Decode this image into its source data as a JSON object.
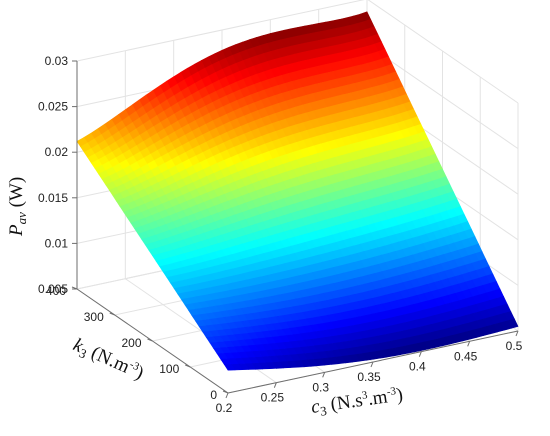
{
  "chart_data": {
    "type": "surface",
    "title": "",
    "xlabel": {
      "sym": "c",
      "sub": "3",
      "unit_a": " (N.s",
      "sup_a": "3",
      "unit_b": ".m",
      "sup_b": "-3",
      "unit_c": ")"
    },
    "ylabel": {
      "sym": "k",
      "sub": "3",
      "unit_a": " (N.m",
      "sup_a": "-3",
      "unit_c": ")"
    },
    "zlabel": {
      "sym": "P",
      "sub": "av",
      "unit_c": " (W)"
    },
    "xlim": [
      0.2,
      0.5
    ],
    "ylim": [
      0,
      400
    ],
    "zlim": [
      0.005,
      0.03
    ],
    "x_ticks": [
      "0.2",
      "0.25",
      "0.3",
      "0.35",
      "0.4",
      "0.45",
      "0.5"
    ],
    "y_ticks": [
      "0",
      "100",
      "200",
      "300",
      "400"
    ],
    "z_ticks": [
      "0.005",
      "0.01",
      "0.015",
      "0.02",
      "0.025",
      "0.03"
    ],
    "grid": true,
    "colormap": "jet",
    "corner_values": [
      {
        "x": 0.2,
        "y": 0,
        "z": 0.0075
      },
      {
        "x": 0.5,
        "y": 0,
        "z": 0.0055
      },
      {
        "x": 0.2,
        "y": 400,
        "z": 0.0212
      },
      {
        "x": 0.5,
        "y": 400,
        "z": 0.0286
      }
    ],
    "peak": {
      "x": 0.42,
      "y": 400,
      "z": 0.0295
    }
  }
}
